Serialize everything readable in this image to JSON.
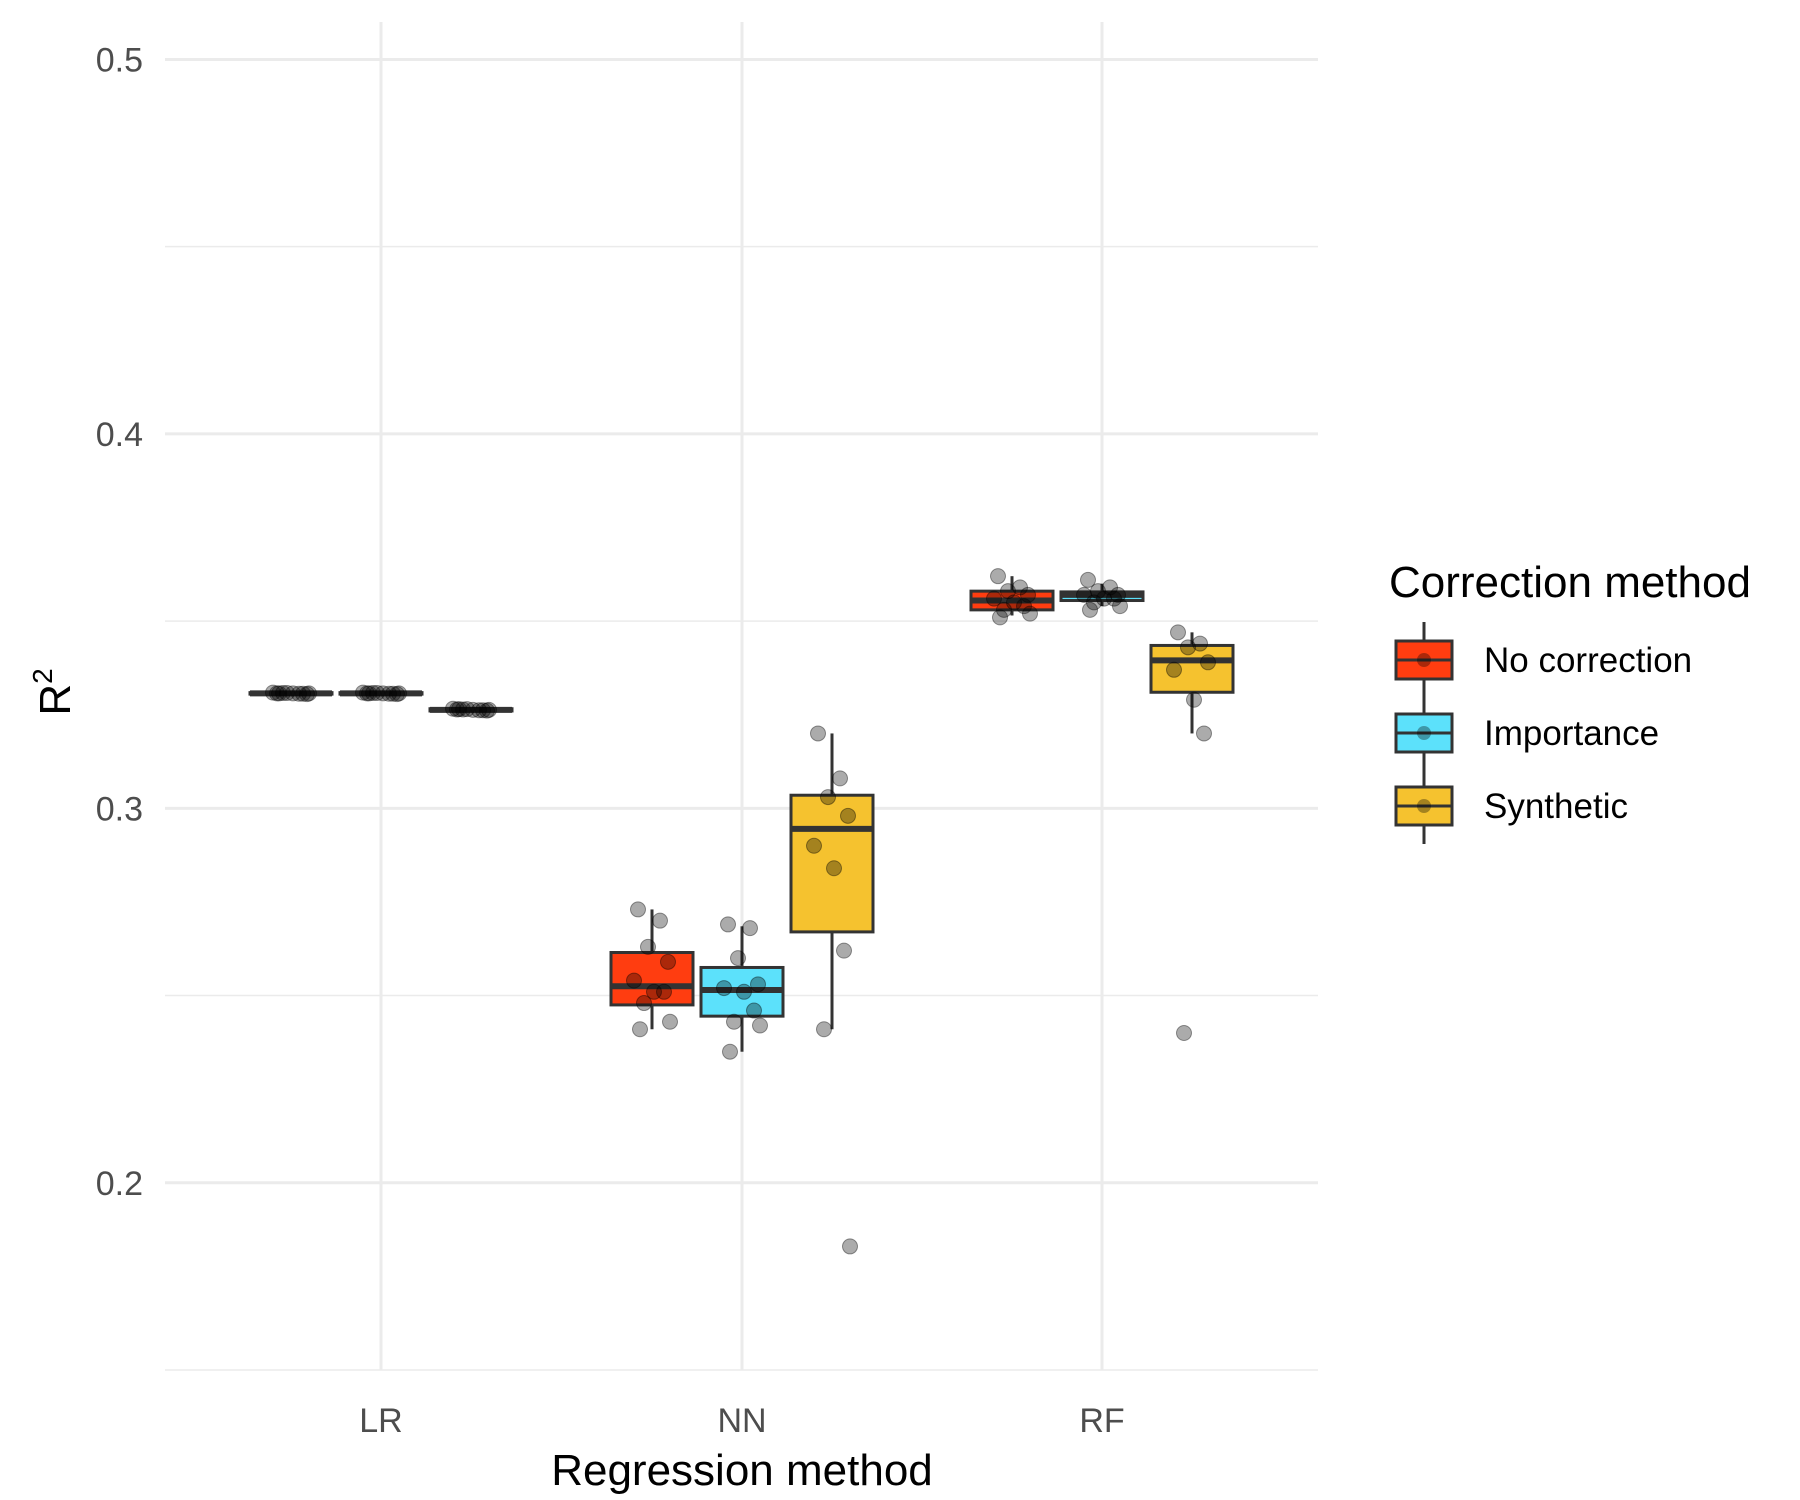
{
  "chart_data": {
    "type": "boxplot",
    "xlabel": "Regression method",
    "ylabel": "R",
    "ylabel_superscript": "2",
    "categories": [
      "LR",
      "NN",
      "RF"
    ],
    "ylim": [
      0.15,
      0.51
    ],
    "yticks": [
      0.2,
      0.3,
      0.4,
      0.5
    ],
    "ytick_labels": [
      "0.2",
      "0.3",
      "0.4",
      "0.5"
    ],
    "grid": true,
    "legend": {
      "title": "Correction method",
      "position": "right",
      "entries": [
        "No correction",
        "Importance",
        "Synthetic"
      ]
    },
    "colors": {
      "No correction": "#ff3d10",
      "Importance": "#5ce1fb",
      "Synthetic": "#f5c22f"
    },
    "series": [
      {
        "name": "No correction",
        "boxes": [
          {
            "category": "LR",
            "whisker_low": 0.3301,
            "q1": 0.3305,
            "median": 0.3307,
            "q3": 0.3309,
            "whisker_high": 0.3312,
            "points": [
              0.3307,
              0.3306,
              0.3308,
              0.3305,
              0.3309,
              0.3307,
              0.3306,
              0.3308,
              0.3307,
              0.3307
            ]
          },
          {
            "category": "NN",
            "whisker_low": 0.241,
            "q1": 0.2475,
            "median": 0.2525,
            "q3": 0.2615,
            "whisker_high": 0.273,
            "points": [
              0.273,
              0.27,
              0.263,
              0.259,
              0.254,
              0.251,
              0.251,
              0.248,
              0.243,
              0.241
            ]
          },
          {
            "category": "RF",
            "whisker_low": 0.3515,
            "q1": 0.353,
            "median": 0.3555,
            "q3": 0.358,
            "whisker_high": 0.362,
            "points": [
              0.362,
              0.359,
              0.358,
              0.357,
              0.356,
              0.355,
              0.354,
              0.353,
              0.352,
              0.351
            ]
          }
        ]
      },
      {
        "name": "Importance",
        "boxes": [
          {
            "category": "LR",
            "whisker_low": 0.3302,
            "q1": 0.3305,
            "median": 0.3307,
            "q3": 0.3309,
            "whisker_high": 0.3312,
            "points": [
              0.3307,
              0.3306,
              0.3308,
              0.3305,
              0.3309,
              0.3307,
              0.3306,
              0.3308,
              0.3307,
              0.3307
            ]
          },
          {
            "category": "NN",
            "whisker_low": 0.235,
            "q1": 0.2445,
            "median": 0.2515,
            "q3": 0.2575,
            "whisker_high": 0.2685,
            "points": [
              0.269,
              0.268,
              0.26,
              0.253,
              0.252,
              0.251,
              0.246,
              0.243,
              0.242,
              0.235
            ]
          },
          {
            "category": "RF",
            "whisker_low": 0.354,
            "q1": 0.3555,
            "median": 0.357,
            "q3": 0.3578,
            "whisker_high": 0.36,
            "points": [
              0.361,
              0.359,
              0.358,
              0.357,
              0.357,
              0.356,
              0.356,
              0.355,
              0.354,
              0.353
            ]
          }
        ]
      },
      {
        "name": "Synthetic",
        "boxes": [
          {
            "category": "LR",
            "whisker_low": 0.3256,
            "q1": 0.326,
            "median": 0.3263,
            "q3": 0.3266,
            "whisker_high": 0.327,
            "points": [
              0.3264,
              0.3262,
              0.3265,
              0.3261,
              0.3266,
              0.3263,
              0.3262,
              0.3264,
              0.3263,
              0.3265
            ]
          },
          {
            "category": "NN",
            "whisker_low": 0.241,
            "q1": 0.267,
            "median": 0.2945,
            "q3": 0.3035,
            "whisker_high": 0.32,
            "points": [
              0.32,
              0.308,
              0.303,
              0.298,
              0.29,
              0.284,
              0.262,
              0.241,
              0.183
            ]
          },
          {
            "category": "RF",
            "whisker_low": 0.32,
            "q1": 0.331,
            "median": 0.3395,
            "q3": 0.3435,
            "whisker_high": 0.347,
            "points": [
              0.347,
              0.344,
              0.343,
              0.339,
              0.337,
              0.329,
              0.32,
              0.24
            ]
          }
        ]
      }
    ]
  }
}
